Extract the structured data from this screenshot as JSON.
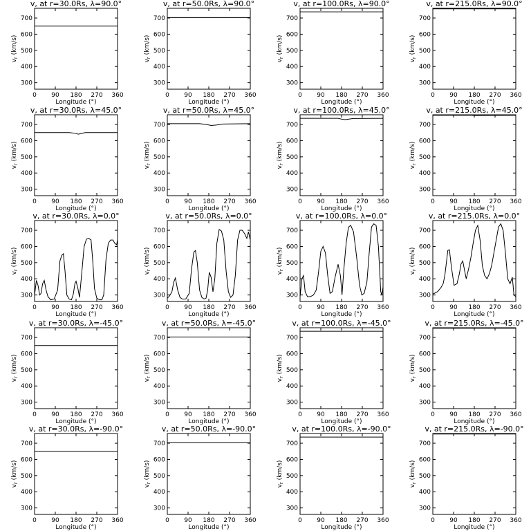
{
  "figure": {
    "xlabel": "Longitude (°)",
    "ylabel": "v",
    "ylabel_sub": "r",
    "ylabel_unit": " (km/s)"
  },
  "chart_data": [
    {
      "type": "line",
      "title": "v, at r=30.0Rs, λ=90.0°",
      "xlim": [
        0,
        360
      ],
      "ylim": [
        260,
        760
      ],
      "xticks": [
        0,
        90,
        180,
        270,
        360
      ],
      "yticks": [
        300,
        400,
        500,
        600,
        700
      ],
      "series": [
        {
          "x": [
            0,
            360
          ],
          "y": [
            650,
            650
          ]
        }
      ]
    },
    {
      "type": "line",
      "title": "v, at r=50.0Rs, λ=90.0°",
      "xlim": [
        0,
        360
      ],
      "ylim": [
        260,
        760
      ],
      "xticks": [
        0,
        90,
        180,
        270,
        360
      ],
      "yticks": [
        300,
        400,
        500,
        600,
        700
      ],
      "series": [
        {
          "x": [
            0,
            360
          ],
          "y": [
            703,
            703
          ]
        }
      ]
    },
    {
      "type": "line",
      "title": "v, at r=100.0Rs, λ=90.0°",
      "xlim": [
        0,
        360
      ],
      "ylim": [
        260,
        760
      ],
      "xticks": [
        0,
        90,
        180,
        270,
        360
      ],
      "yticks": [
        300,
        400,
        500,
        600,
        700
      ],
      "series": [
        {
          "x": [
            0,
            360
          ],
          "y": [
            738,
            738
          ]
        }
      ]
    },
    {
      "type": "line",
      "title": "v, at r=215.0Rs, λ=90.0°",
      "xlim": [
        0,
        360
      ],
      "ylim": [
        260,
        760
      ],
      "xticks": [
        0,
        90,
        180,
        270,
        360
      ],
      "yticks": [
        300,
        400,
        500,
        600,
        700
      ],
      "series": [
        {
          "x": [
            0,
            360
          ],
          "y": [
            757,
            757
          ]
        }
      ]
    },
    {
      "type": "line",
      "title": "v, at r=30.0Rs, λ=45.0°",
      "xlim": [
        0,
        360
      ],
      "ylim": [
        260,
        760
      ],
      "xticks": [
        0,
        90,
        180,
        270,
        360
      ],
      "yticks": [
        300,
        400,
        500,
        600,
        700
      ],
      "series": [
        {
          "x": [
            0,
            150,
            175,
            190,
            205,
            220,
            360
          ],
          "y": [
            650,
            650,
            646,
            640,
            645,
            650,
            650
          ]
        }
      ]
    },
    {
      "type": "line",
      "title": "v, at r=50.0Rs, λ=45.0°",
      "xlim": [
        0,
        360
      ],
      "ylim": [
        260,
        760
      ],
      "xticks": [
        0,
        90,
        180,
        270,
        360
      ],
      "yticks": [
        300,
        400,
        500,
        600,
        700
      ],
      "series": [
        {
          "x": [
            0,
            140,
            170,
            190,
            215,
            240,
            360
          ],
          "y": [
            705,
            705,
            700,
            694,
            697,
            703,
            705
          ]
        }
      ]
    },
    {
      "type": "line",
      "title": "v, at r=100.0Rs, λ=45.0°",
      "xlim": [
        0,
        360
      ],
      "ylim": [
        260,
        760
      ],
      "xticks": [
        0,
        90,
        180,
        270,
        360
      ],
      "yticks": [
        300,
        400,
        500,
        600,
        700
      ],
      "series": [
        {
          "x": [
            0,
            165,
            180,
            195,
            215,
            230,
            360
          ],
          "y": [
            738,
            738,
            733,
            730,
            734,
            737,
            738
          ]
        }
      ]
    },
    {
      "type": "line",
      "title": "v, at r=215.0Rs, λ=45.0°",
      "xlim": [
        0,
        360
      ],
      "ylim": [
        260,
        760
      ],
      "xticks": [
        0,
        90,
        180,
        270,
        360
      ],
      "yticks": [
        300,
        400,
        500,
        600,
        700
      ],
      "series": [
        {
          "x": [
            0,
            170,
            190,
            210,
            360
          ],
          "y": [
            757,
            757,
            754,
            756,
            757
          ]
        }
      ]
    },
    {
      "type": "line",
      "title": "v, at r=30.0Rs, λ=0.0°",
      "xlim": [
        0,
        360
      ],
      "ylim": [
        260,
        760
      ],
      "xticks": [
        0,
        90,
        180,
        270,
        360
      ],
      "yticks": [
        300,
        400,
        500,
        600,
        700
      ],
      "series": [
        {
          "x": [
            0,
            8,
            15,
            22,
            28,
            35,
            42,
            50,
            58,
            70,
            85,
            100,
            110,
            118,
            125,
            132,
            140,
            150,
            160,
            168,
            175,
            180,
            188,
            195,
            205,
            215,
            225,
            235,
            245,
            252,
            260,
            270,
            282,
            292,
            300,
            310,
            320,
            330,
            340,
            348,
            356,
            360
          ],
          "y": [
            300,
            390,
            360,
            300,
            310,
            370,
            390,
            330,
            290,
            270,
            275,
            330,
            510,
            545,
            555,
            450,
            300,
            275,
            270,
            305,
            370,
            385,
            340,
            285,
            440,
            600,
            645,
            650,
            640,
            520,
            340,
            280,
            270,
            270,
            300,
            520,
            620,
            640,
            640,
            620,
            610,
            640
          ]
        }
      ]
    },
    {
      "type": "line",
      "title": "v, at r=50.0Rs, λ=0.0°",
      "xlim": [
        0,
        360
      ],
      "ylim": [
        260,
        760
      ],
      "xticks": [
        0,
        90,
        180,
        270,
        360
      ],
      "yticks": [
        300,
        400,
        500,
        600,
        700
      ],
      "series": [
        {
          "x": [
            0,
            10,
            20,
            28,
            35,
            45,
            55,
            65,
            80,
            95,
            105,
            115,
            122,
            130,
            140,
            150,
            160,
            168,
            175,
            182,
            190,
            198,
            206,
            215,
            225,
            235,
            245,
            255,
            265,
            275,
            285,
            295,
            305,
            315,
            325,
            335,
            345,
            352,
            360
          ],
          "y": [
            280,
            295,
            320,
            380,
            405,
            330,
            285,
            275,
            275,
            310,
            460,
            565,
            575,
            500,
            330,
            285,
            275,
            280,
            330,
            440,
            410,
            320,
            400,
            620,
            705,
            695,
            640,
            450,
            320,
            285,
            300,
            420,
            640,
            700,
            700,
            680,
            650,
            690,
            640
          ]
        }
      ]
    },
    {
      "type": "line",
      "title": "v, at r=100.0Rs, λ=0.0°",
      "xlim": [
        0,
        360
      ],
      "ylim": [
        260,
        760
      ],
      "xticks": [
        0,
        90,
        180,
        270,
        360
      ],
      "yticks": [
        300,
        400,
        500,
        600,
        700
      ],
      "series": [
        {
          "x": [
            0,
            8,
            15,
            22,
            32,
            45,
            58,
            70,
            80,
            90,
            100,
            110,
            120,
            130,
            140,
            152,
            165,
            175,
            182,
            190,
            200,
            210,
            220,
            232,
            245,
            258,
            268,
            278,
            290,
            300,
            310,
            320,
            330,
            340,
            350,
            355,
            360
          ],
          "y": [
            290,
            400,
            420,
            320,
            290,
            290,
            300,
            330,
            440,
            570,
            600,
            560,
            420,
            310,
            320,
            410,
            490,
            420,
            300,
            460,
            620,
            720,
            730,
            690,
            540,
            360,
            300,
            310,
            380,
            560,
            720,
            740,
            730,
            600,
            320,
            300,
            350
          ]
        }
      ]
    },
    {
      "type": "line",
      "title": "v, at r=215.0Rs, λ=0.0°",
      "xlim": [
        0,
        360
      ],
      "ylim": [
        260,
        760
      ],
      "xticks": [
        0,
        90,
        180,
        270,
        360
      ],
      "yticks": [
        300,
        400,
        500,
        600,
        700
      ],
      "series": [
        {
          "x": [
            0,
            20,
            35,
            45,
            52,
            58,
            65,
            72,
            80,
            92,
            105,
            115,
            122,
            130,
            138,
            145,
            155,
            165,
            175,
            185,
            195,
            205,
            215,
            225,
            235,
            245,
            255,
            265,
            275,
            285,
            295,
            305,
            315,
            325,
            335,
            345,
            352,
            360
          ],
          "y": [
            305,
            320,
            345,
            370,
            420,
            490,
            575,
            580,
            480,
            360,
            370,
            430,
            490,
            510,
            450,
            400,
            460,
            530,
            620,
            700,
            730,
            640,
            480,
            420,
            400,
            430,
            480,
            560,
            640,
            720,
            740,
            700,
            560,
            400,
            370,
            410,
            300,
            290
          ]
        }
      ]
    },
    {
      "type": "line",
      "title": "v, at r=30.0Rs, λ=-45.0°",
      "xlim": [
        0,
        360
      ],
      "ylim": [
        260,
        760
      ],
      "xticks": [
        0,
        90,
        180,
        270,
        360
      ],
      "yticks": [
        300,
        400,
        500,
        600,
        700
      ],
      "series": [
        {
          "x": [
            0,
            360
          ],
          "y": [
            650,
            650
          ]
        }
      ]
    },
    {
      "type": "line",
      "title": "v, at r=50.0Rs, λ=-45.0°",
      "xlim": [
        0,
        360
      ],
      "ylim": [
        260,
        760
      ],
      "xticks": [
        0,
        90,
        180,
        270,
        360
      ],
      "yticks": [
        300,
        400,
        500,
        600,
        700
      ],
      "series": [
        {
          "x": [
            0,
            360
          ],
          "y": [
            703,
            703
          ]
        }
      ]
    },
    {
      "type": "line",
      "title": "v, at r=100.0Rs, λ=-45.0°",
      "xlim": [
        0,
        360
      ],
      "ylim": [
        260,
        760
      ],
      "xticks": [
        0,
        90,
        180,
        270,
        360
      ],
      "yticks": [
        300,
        400,
        500,
        600,
        700
      ],
      "series": [
        {
          "x": [
            0,
            360
          ],
          "y": [
            738,
            738
          ]
        }
      ]
    },
    {
      "type": "line",
      "title": "v, at r=215.0Rs, λ=-45.0°",
      "xlim": [
        0,
        360
      ],
      "ylim": [
        260,
        760
      ],
      "xticks": [
        0,
        90,
        180,
        270,
        360
      ],
      "yticks": [
        300,
        400,
        500,
        600,
        700
      ],
      "series": [
        {
          "x": [
            0,
            360
          ],
          "y": [
            757,
            757
          ]
        }
      ]
    },
    {
      "type": "line",
      "title": "v, at r=30.0Rs, λ=-90.0°",
      "xlim": [
        0,
        360
      ],
      "ylim": [
        260,
        760
      ],
      "xticks": [
        0,
        90,
        180,
        270,
        360
      ],
      "yticks": [
        300,
        400,
        500,
        600,
        700
      ],
      "series": [
        {
          "x": [
            0,
            360
          ],
          "y": [
            650,
            650
          ]
        }
      ]
    },
    {
      "type": "line",
      "title": "v, at r=50.0Rs, λ=-90.0°",
      "xlim": [
        0,
        360
      ],
      "ylim": [
        260,
        760
      ],
      "xticks": [
        0,
        90,
        180,
        270,
        360
      ],
      "yticks": [
        300,
        400,
        500,
        600,
        700
      ],
      "series": [
        {
          "x": [
            0,
            360
          ],
          "y": [
            703,
            703
          ]
        }
      ]
    },
    {
      "type": "line",
      "title": "v, at r=100.0Rs, λ=-90.0°",
      "xlim": [
        0,
        360
      ],
      "ylim": [
        260,
        760
      ],
      "xticks": [
        0,
        90,
        180,
        270,
        360
      ],
      "yticks": [
        300,
        400,
        500,
        600,
        700
      ],
      "series": [
        {
          "x": [
            0,
            360
          ],
          "y": [
            738,
            738
          ]
        }
      ]
    },
    {
      "type": "line",
      "title": "v, at r=215.0Rs, λ=-90.0°",
      "xlim": [
        0,
        360
      ],
      "ylim": [
        260,
        760
      ],
      "xticks": [
        0,
        90,
        180,
        270,
        360
      ],
      "yticks": [
        300,
        400,
        500,
        600,
        700
      ],
      "series": [
        {
          "x": [
            0,
            360
          ],
          "y": [
            757,
            757
          ]
        }
      ]
    }
  ]
}
